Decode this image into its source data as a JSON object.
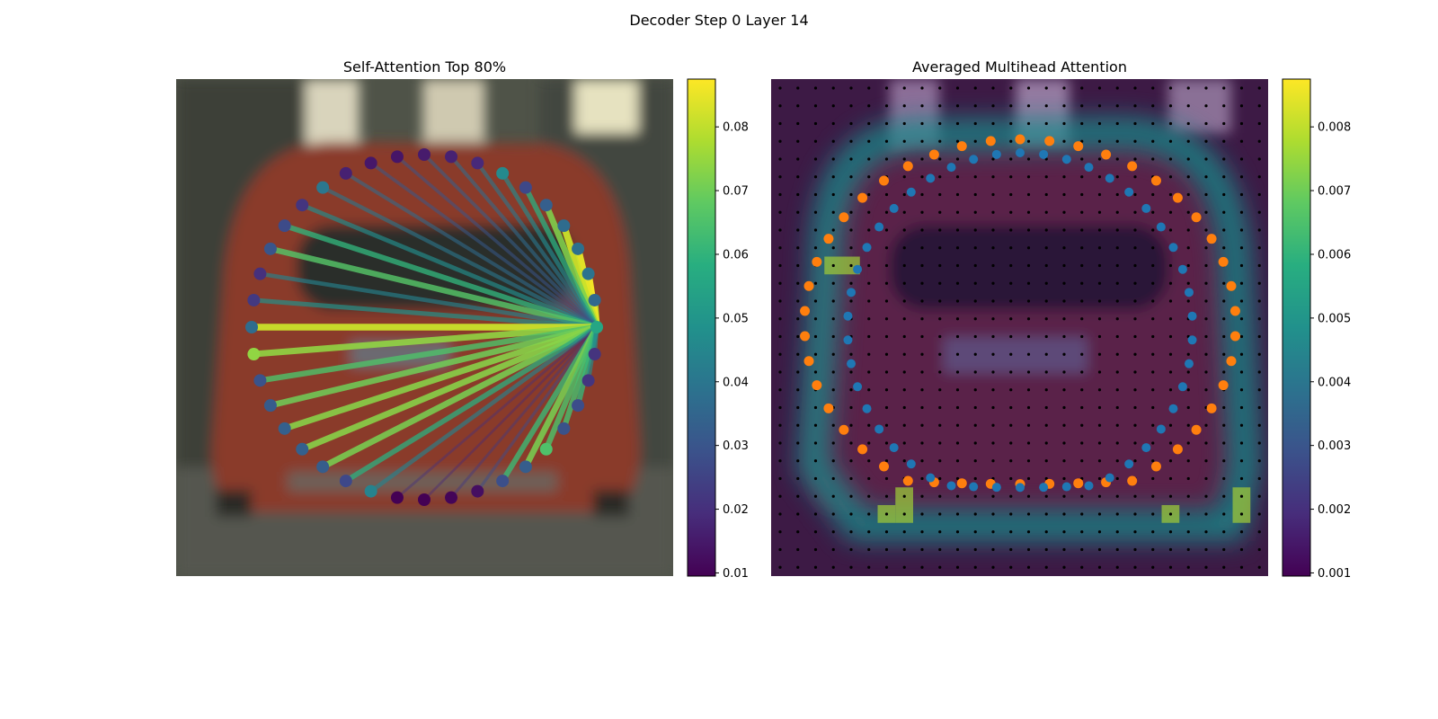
{
  "figure": {
    "suptitle": "Decoder Step 0 Layer 14"
  },
  "panels": {
    "left": {
      "title": "Self-Attention Top 80%",
      "colorbar_ticks": [
        "0.01",
        "0.02",
        "0.03",
        "0.04",
        "0.05",
        "0.06",
        "0.07",
        "0.08"
      ]
    },
    "right": {
      "title": "Averaged Multihead Attention",
      "colorbar_ticks": [
        "0.001",
        "0.002",
        "0.003",
        "0.004",
        "0.005",
        "0.006",
        "0.007",
        "0.008"
      ]
    }
  },
  "colors": {
    "orange_points": "#ff7f0e",
    "blue_points": "#1f77b4",
    "grid_dots": "#000000"
  },
  "chart_data": [
    {
      "type": "scatter",
      "title": "Self-Attention Top 80%",
      "description_kind": "attention lines from the query point to 40 polygon points, colored by weight",
      "colormap": "viridis",
      "clim": [
        0.009,
        0.087
      ],
      "query_index": 0,
      "weights": [
        0.055,
        0.078,
        0.086,
        0.084,
        0.081,
        0.072,
        0.058,
        0.046,
        0.04,
        0.036,
        0.033,
        0.03,
        0.031,
        0.036,
        0.04,
        0.047,
        0.06,
        0.066,
        0.044,
        0.049,
        0.081,
        0.074,
        0.065,
        0.07,
        0.073,
        0.073,
        0.071,
        0.058,
        0.044,
        0.02,
        0.018,
        0.022,
        0.027,
        0.062,
        0.071,
        0.065,
        0.064,
        0.061,
        0.047,
        0.046
      ]
    },
    {
      "type": "heatmap",
      "title": "Averaged Multihead Attention",
      "colormap": "viridis",
      "clim": [
        0.0001,
        0.0081
      ],
      "grid": [
        28,
        28
      ],
      "series": [
        {
          "name": "",
          "color": "#ff7f0e",
          "description_kind": "outer contour points"
        },
        {
          "name": "",
          "color": "#1f77b4",
          "description_kind": "inner contour points"
        }
      ]
    }
  ]
}
